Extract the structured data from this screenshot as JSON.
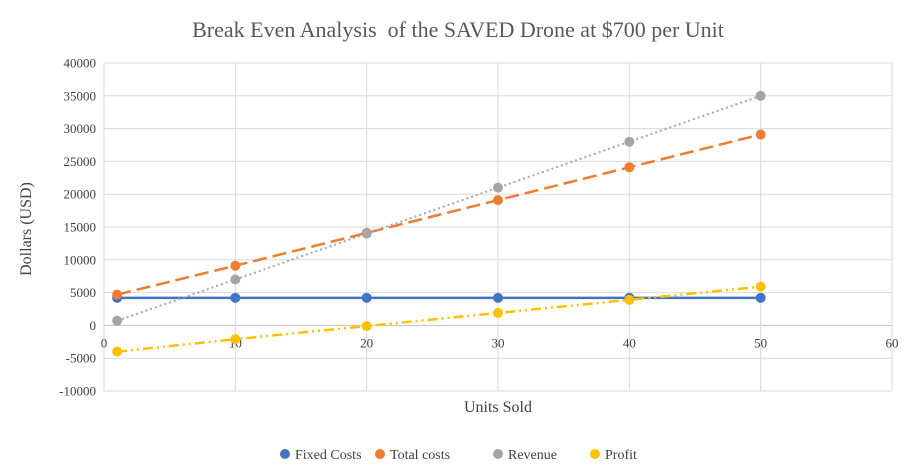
{
  "chart_data": {
    "type": "line",
    "title": "Break Even Analysis  of the SAVED Drone at $700 per Unit",
    "xlabel": "Units Sold",
    "ylabel": "Dollars (USD)",
    "xlim": [
      0,
      60
    ],
    "ylim": [
      -10000,
      40000
    ],
    "x_ticks": [
      0,
      10,
      20,
      30,
      40,
      50,
      60
    ],
    "y_ticks": [
      -10000,
      -5000,
      0,
      5000,
      10000,
      15000,
      20000,
      25000,
      30000,
      35000,
      40000
    ],
    "grid": true,
    "legend_position": "bottom",
    "x": [
      1,
      10,
      20,
      30,
      40,
      50
    ],
    "series": [
      {
        "name": "Fixed Costs",
        "color": "#4472c4",
        "line_style": "solid",
        "values": [
          4200,
          4200,
          4200,
          4200,
          4200,
          4200
        ]
      },
      {
        "name": "Total costs",
        "color": "#ed7d31",
        "line_style": "long-dash",
        "values": [
          4700,
          9100,
          14100,
          19100,
          24100,
          29100
        ]
      },
      {
        "name": "Revenue",
        "color": "#a5a5a5",
        "line_style": "dotted",
        "values": [
          700,
          7000,
          14000,
          21000,
          28000,
          35000
        ]
      },
      {
        "name": "Profit",
        "color": "#ffc000",
        "line_style": "dash-dot-dot",
        "values": [
          -4000,
          -2100,
          -100,
          1900,
          3900,
          5900
        ]
      }
    ]
  }
}
